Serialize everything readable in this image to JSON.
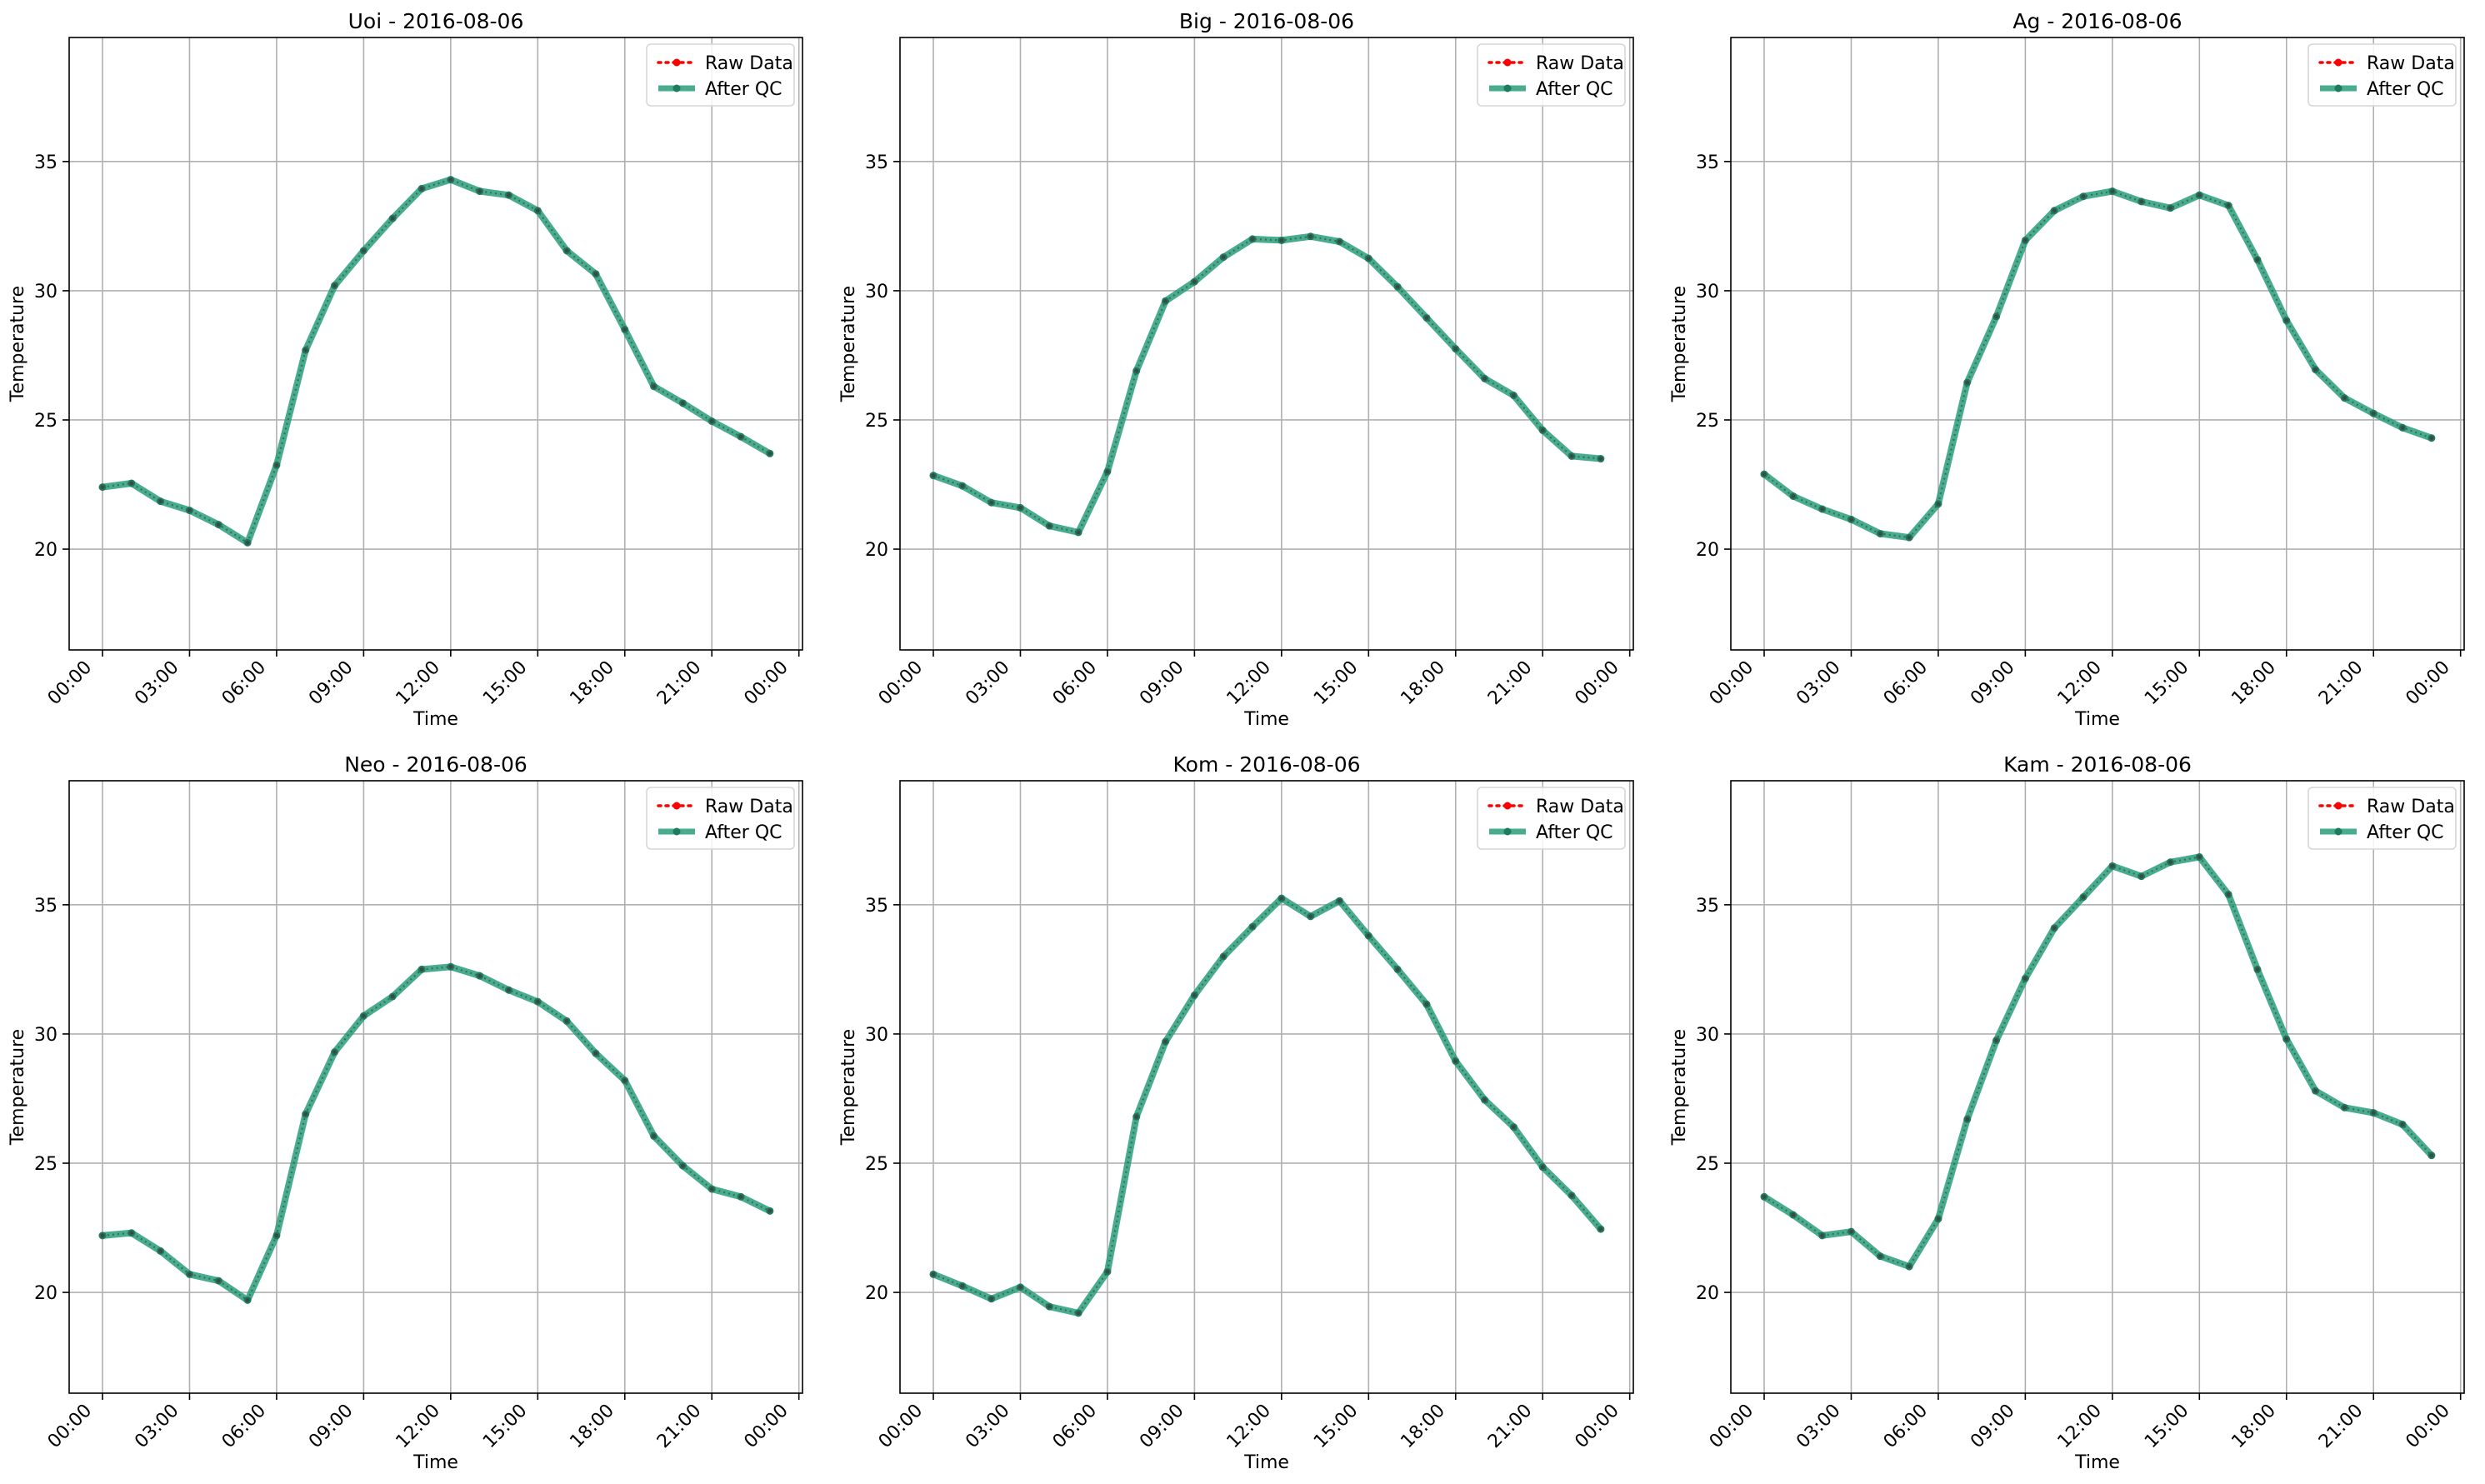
{
  "chart_data": [
    {
      "type": "line",
      "title": "Uoi - 2016-08-06",
      "xlabel": "Time",
      "ylabel": "Temperature",
      "ylim": [
        16.1,
        39.8
      ],
      "y_ticks": [
        20,
        25,
        30,
        35
      ],
      "x_ticks": [
        "00:00",
        "03:00",
        "06:00",
        "09:00",
        "12:00",
        "15:00",
        "18:00",
        "21:00",
        "00:00"
      ],
      "x_hours": [
        0,
        1,
        2,
        3,
        4,
        5,
        6,
        7,
        8,
        9,
        10,
        11,
        12,
        13,
        14,
        15,
        16,
        17,
        18,
        19,
        20,
        21,
        22,
        23
      ],
      "grid": true,
      "legend_placement": "top-right",
      "series": [
        {
          "name": "Raw Data",
          "color": "#ff0000",
          "style": "dotted",
          "values": [
            22.4,
            22.55,
            21.85,
            21.5,
            20.95,
            20.25,
            23.25,
            27.7,
            30.2,
            31.55,
            32.8,
            33.95,
            34.3,
            33.85,
            33.7,
            33.1,
            31.55,
            30.65,
            28.5,
            26.3,
            25.65,
            24.95,
            24.35,
            23.7
          ]
        },
        {
          "name": "After QC",
          "color": "#2a9d7a",
          "style": "solid",
          "values": [
            22.4,
            22.55,
            21.85,
            21.5,
            20.95,
            20.25,
            23.25,
            27.7,
            30.2,
            31.55,
            32.8,
            33.95,
            34.3,
            33.85,
            33.7,
            33.1,
            31.55,
            30.65,
            28.5,
            26.3,
            25.65,
            24.95,
            24.35,
            23.7
          ]
        }
      ]
    },
    {
      "type": "line",
      "title": "Big - 2016-08-06",
      "xlabel": "Time",
      "ylabel": "Temperature",
      "ylim": [
        16.1,
        39.8
      ],
      "y_ticks": [
        20,
        25,
        30,
        35
      ],
      "x_ticks": [
        "00:00",
        "03:00",
        "06:00",
        "09:00",
        "12:00",
        "15:00",
        "18:00",
        "21:00",
        "00:00"
      ],
      "x_hours": [
        0,
        1,
        2,
        3,
        4,
        5,
        6,
        7,
        8,
        9,
        10,
        11,
        12,
        13,
        14,
        15,
        16,
        17,
        18,
        19,
        20,
        21,
        22,
        23
      ],
      "grid": true,
      "legend_placement": "top-right",
      "series": [
        {
          "name": "Raw Data",
          "color": "#ff0000",
          "style": "dotted",
          "values": [
            22.85,
            22.45,
            21.8,
            21.6,
            20.9,
            20.65,
            23.0,
            26.9,
            29.6,
            30.35,
            31.3,
            32.0,
            31.95,
            32.1,
            31.9,
            31.25,
            30.15,
            28.95,
            27.75,
            26.6,
            25.95,
            24.6,
            23.6,
            23.5
          ]
        },
        {
          "name": "After QC",
          "color": "#2a9d7a",
          "style": "solid",
          "values": [
            22.85,
            22.45,
            21.8,
            21.6,
            20.9,
            20.65,
            23.0,
            26.9,
            29.6,
            30.35,
            31.3,
            32.0,
            31.95,
            32.1,
            31.9,
            31.25,
            30.15,
            28.95,
            27.75,
            26.6,
            25.95,
            24.6,
            23.6,
            23.5
          ]
        }
      ]
    },
    {
      "type": "line",
      "title": "Ag - 2016-08-06",
      "xlabel": "Time",
      "ylabel": "Temperature",
      "ylim": [
        16.1,
        39.8
      ],
      "y_ticks": [
        20,
        25,
        30,
        35
      ],
      "x_ticks": [
        "00:00",
        "03:00",
        "06:00",
        "09:00",
        "12:00",
        "15:00",
        "18:00",
        "21:00",
        "00:00"
      ],
      "x_hours": [
        0,
        1,
        2,
        3,
        4,
        5,
        6,
        7,
        8,
        9,
        10,
        11,
        12,
        13,
        14,
        15,
        16,
        17,
        18,
        19,
        20,
        21,
        22,
        23
      ],
      "grid": true,
      "legend_placement": "top-right",
      "series": [
        {
          "name": "Raw Data",
          "color": "#ff0000",
          "style": "dotted",
          "values": [
            22.9,
            22.05,
            21.55,
            21.15,
            20.6,
            20.45,
            21.75,
            26.45,
            29.0,
            31.95,
            33.1,
            33.65,
            33.85,
            33.45,
            33.2,
            33.7,
            33.3,
            31.2,
            28.85,
            26.95,
            25.85,
            25.25,
            24.7,
            24.3
          ]
        },
        {
          "name": "After QC",
          "color": "#2a9d7a",
          "style": "solid",
          "values": [
            22.9,
            22.05,
            21.55,
            21.15,
            20.6,
            20.45,
            21.75,
            26.45,
            29.0,
            31.95,
            33.1,
            33.65,
            33.85,
            33.45,
            33.2,
            33.7,
            33.3,
            31.2,
            28.85,
            26.95,
            25.85,
            25.25,
            24.7,
            24.3
          ]
        }
      ]
    },
    {
      "type": "line",
      "title": "Neo - 2016-08-06",
      "xlabel": "Time",
      "ylabel": "Temperature",
      "ylim": [
        16.1,
        39.8
      ],
      "y_ticks": [
        20,
        25,
        30,
        35
      ],
      "x_ticks": [
        "00:00",
        "03:00",
        "06:00",
        "09:00",
        "12:00",
        "15:00",
        "18:00",
        "21:00",
        "00:00"
      ],
      "x_hours": [
        0,
        1,
        2,
        3,
        4,
        5,
        6,
        7,
        8,
        9,
        10,
        11,
        12,
        13,
        14,
        15,
        16,
        17,
        18,
        19,
        20,
        21,
        22,
        23
      ],
      "grid": true,
      "legend_placement": "top-right",
      "series": [
        {
          "name": "Raw Data",
          "color": "#ff0000",
          "style": "dotted",
          "values": [
            22.2,
            22.3,
            21.6,
            20.7,
            20.45,
            19.7,
            22.2,
            26.9,
            29.3,
            30.7,
            31.45,
            32.5,
            32.6,
            32.25,
            31.7,
            31.25,
            30.5,
            29.25,
            28.2,
            26.05,
            24.9,
            24.0,
            23.7,
            23.15
          ]
        },
        {
          "name": "After QC",
          "color": "#2a9d7a",
          "style": "solid",
          "values": [
            22.2,
            22.3,
            21.6,
            20.7,
            20.45,
            19.7,
            22.2,
            26.9,
            29.3,
            30.7,
            31.45,
            32.5,
            32.6,
            32.25,
            31.7,
            31.25,
            30.5,
            29.25,
            28.2,
            26.05,
            24.9,
            24.0,
            23.7,
            23.15
          ]
        }
      ]
    },
    {
      "type": "line",
      "title": "Kom - 2016-08-06",
      "xlabel": "Time",
      "ylabel": "Temperature",
      "ylim": [
        16.1,
        39.8
      ],
      "y_ticks": [
        20,
        25,
        30,
        35
      ],
      "x_ticks": [
        "00:00",
        "03:00",
        "06:00",
        "09:00",
        "12:00",
        "15:00",
        "18:00",
        "21:00",
        "00:00"
      ],
      "x_hours": [
        0,
        1,
        2,
        3,
        4,
        5,
        6,
        7,
        8,
        9,
        10,
        11,
        12,
        13,
        14,
        15,
        16,
        17,
        18,
        19,
        20,
        21,
        22,
        23
      ],
      "grid": true,
      "legend_placement": "top-right",
      "series": [
        {
          "name": "Raw Data",
          "color": "#ff0000",
          "style": "dotted",
          "values": [
            20.7,
            20.25,
            19.75,
            20.2,
            19.45,
            19.2,
            20.8,
            26.8,
            29.7,
            31.5,
            33.0,
            34.15,
            35.25,
            34.55,
            35.15,
            33.8,
            32.5,
            31.15,
            28.95,
            27.45,
            26.4,
            24.85,
            23.75,
            22.45
          ]
        },
        {
          "name": "After QC",
          "color": "#2a9d7a",
          "style": "solid",
          "values": [
            20.7,
            20.25,
            19.75,
            20.2,
            19.45,
            19.2,
            20.8,
            26.8,
            29.7,
            31.5,
            33.0,
            34.15,
            35.25,
            34.55,
            35.15,
            33.8,
            32.5,
            31.15,
            28.95,
            27.45,
            26.4,
            24.85,
            23.75,
            22.45
          ]
        }
      ]
    },
    {
      "type": "line",
      "title": "Kam - 2016-08-06",
      "xlabel": "Time",
      "ylabel": "Temperature",
      "ylim": [
        16.1,
        39.8
      ],
      "y_ticks": [
        20,
        25,
        30,
        35
      ],
      "x_ticks": [
        "00:00",
        "03:00",
        "06:00",
        "09:00",
        "12:00",
        "15:00",
        "18:00",
        "21:00",
        "00:00"
      ],
      "x_hours": [
        0,
        1,
        2,
        3,
        4,
        5,
        6,
        7,
        8,
        9,
        10,
        11,
        12,
        13,
        14,
        15,
        16,
        17,
        18,
        19,
        20,
        21,
        22,
        23
      ],
      "grid": true,
      "legend_placement": "top-right",
      "series": [
        {
          "name": "Raw Data",
          "color": "#ff0000",
          "style": "dotted",
          "values": [
            23.7,
            23.0,
            22.2,
            22.35,
            21.4,
            21.0,
            22.85,
            26.7,
            29.75,
            32.15,
            34.1,
            35.3,
            36.5,
            36.1,
            36.65,
            36.85,
            35.4,
            32.5,
            29.8,
            27.8,
            27.15,
            26.95,
            26.5,
            25.3
          ]
        },
        {
          "name": "After QC",
          "color": "#2a9d7a",
          "style": "solid",
          "values": [
            23.7,
            23.0,
            22.2,
            22.35,
            21.4,
            21.0,
            22.85,
            26.7,
            29.75,
            32.15,
            34.1,
            35.3,
            36.5,
            36.1,
            36.65,
            36.85,
            35.4,
            32.5,
            29.8,
            27.8,
            27.15,
            26.95,
            26.5,
            25.3
          ]
        }
      ]
    }
  ]
}
